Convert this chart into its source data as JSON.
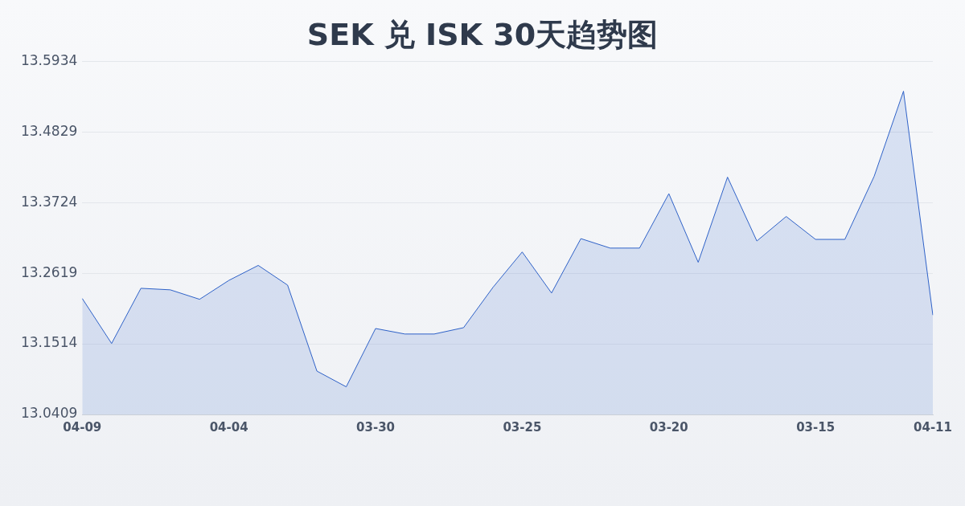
{
  "chart_data": {
    "type": "area",
    "title": "SEK 兑 ISK 30天趋势图",
    "categories": [
      "04-09",
      null,
      null,
      null,
      null,
      "04-04",
      null,
      null,
      null,
      null,
      "03-30",
      null,
      null,
      null,
      null,
      "03-25",
      null,
      null,
      null,
      null,
      "03-20",
      null,
      null,
      null,
      null,
      "03-15",
      null,
      null,
      null,
      "04-11"
    ],
    "series": [
      {
        "color": "#2f62c8",
        "values": [
          13.2222,
          13.1519,
          13.2382,
          13.2358,
          13.221,
          13.2506,
          13.274,
          13.2432,
          13.1087,
          13.0841,
          13.1753,
          13.1667,
          13.1667,
          13.1766,
          13.2395,
          13.295,
          13.2308,
          13.3159,
          13.3011,
          13.3011,
          13.3862,
          13.2789,
          13.4121,
          13.3122,
          13.3505,
          13.3147,
          13.3147,
          13.4134,
          13.5465,
          13.1963
        ]
      }
    ],
    "ylim": [
      13.0409,
      13.5934
    ],
    "yticks": [
      13.0409,
      13.1514,
      13.2619,
      13.3724,
      13.4829,
      13.5934
    ],
    "grid": "y",
    "legend": false,
    "marker": "none",
    "line_style": "solid"
  }
}
